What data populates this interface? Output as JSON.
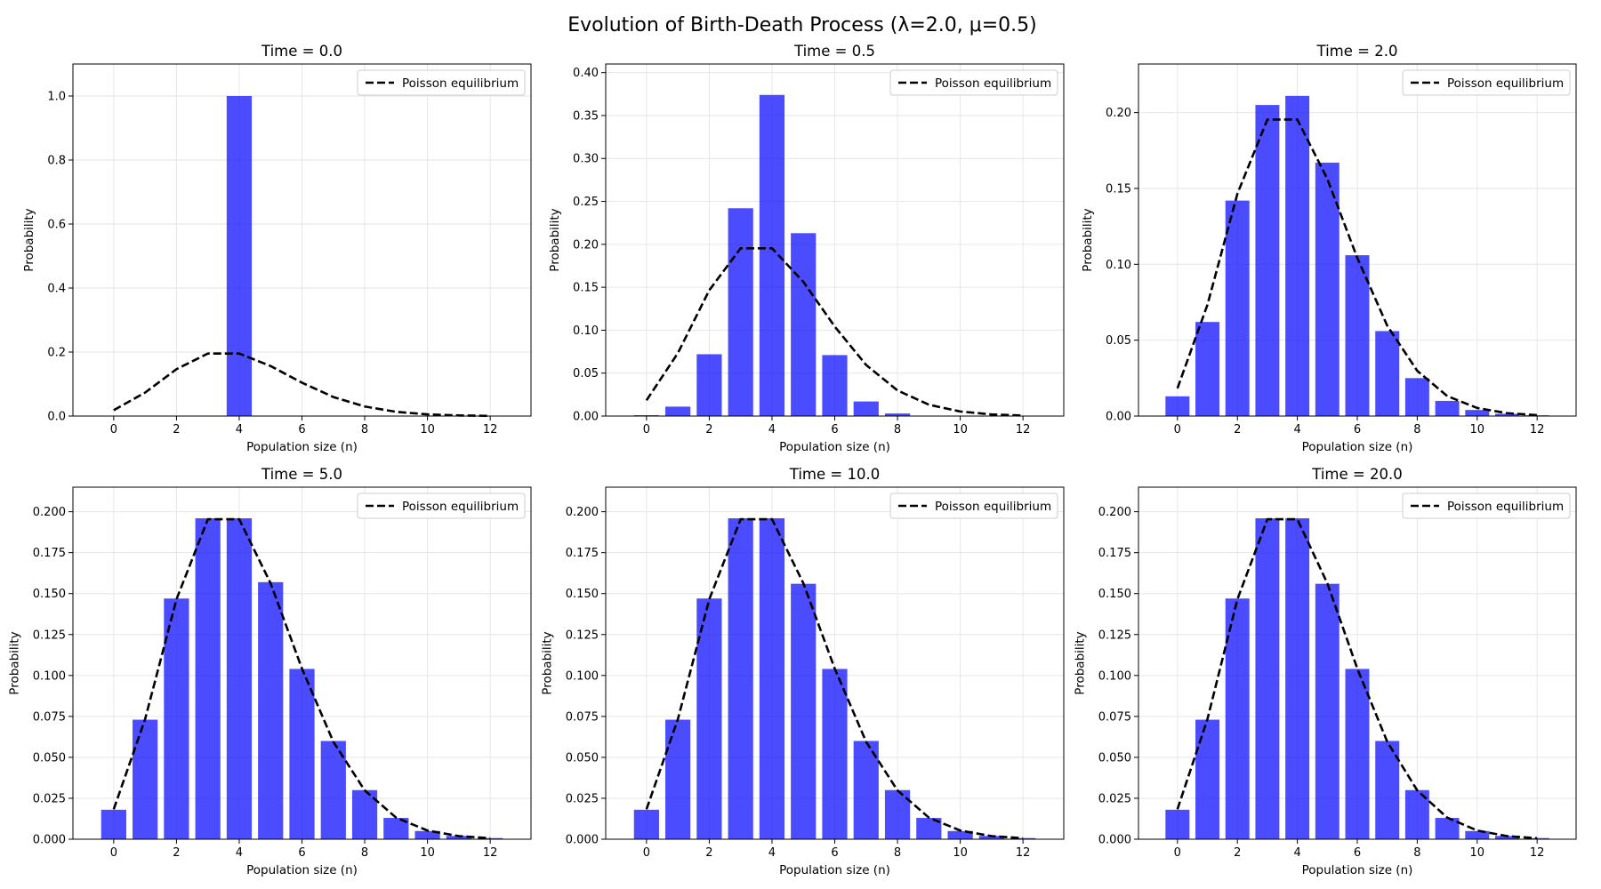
{
  "figure": {
    "title": "Evolution of Birth-Death Process (λ=2.0, μ=0.5)"
  },
  "colors": {
    "bar": "#0000ff",
    "bar_opacity": 0.7,
    "equilibrium_line": "#000000",
    "grid": "#e6e6e6"
  },
  "chart_data": [
    {
      "type": "bar",
      "title": "Time = 0.0",
      "xlabel": "Population size (n)",
      "ylabel": "Probability",
      "x": [
        0,
        1,
        2,
        3,
        4,
        5,
        6,
        7,
        8,
        9,
        10,
        11,
        12
      ],
      "values": [
        0,
        0,
        0,
        0,
        1.0,
        0,
        0,
        0,
        0,
        0,
        0,
        0,
        0
      ],
      "xlim": [
        -1.3,
        13.3
      ],
      "ylim": [
        0,
        1.1
      ],
      "xticks": [
        0,
        2,
        4,
        6,
        8,
        10,
        12
      ],
      "xtick_labels": [
        "0",
        "2",
        "4",
        "6",
        "8",
        "10",
        "12"
      ],
      "yticks": [
        0,
        0.2,
        0.4,
        0.6,
        0.8,
        1.0
      ],
      "ytick_labels": [
        "0.0",
        "0.2",
        "0.4",
        "0.6",
        "0.8",
        "1.0"
      ],
      "series": [
        {
          "name": "Poisson equilibrium",
          "style": "dashed",
          "values": [
            0.0183,
            0.0733,
            0.1465,
            0.1954,
            0.1954,
            0.1563,
            0.1042,
            0.0595,
            0.0298,
            0.0132,
            0.0053,
            0.0019,
            0.0006
          ]
        }
      ],
      "grid": true,
      "legend": "top-right"
    },
    {
      "type": "bar",
      "title": "Time = 0.5",
      "xlabel": "Population size (n)",
      "ylabel": "Probability",
      "x": [
        0,
        1,
        2,
        3,
        4,
        5,
        6,
        7,
        8,
        9,
        10,
        11,
        12
      ],
      "values": [
        0.001,
        0.011,
        0.072,
        0.242,
        0.374,
        0.213,
        0.071,
        0.017,
        0.003,
        0.0005,
        0.0001,
        0,
        0
      ],
      "xlim": [
        -1.3,
        13.3
      ],
      "ylim": [
        0,
        0.41
      ],
      "xticks": [
        0,
        2,
        4,
        6,
        8,
        10,
        12
      ],
      "xtick_labels": [
        "0",
        "2",
        "4",
        "6",
        "8",
        "10",
        "12"
      ],
      "yticks": [
        0,
        0.05,
        0.1,
        0.15,
        0.2,
        0.25,
        0.3,
        0.35,
        0.4
      ],
      "ytick_labels": [
        "0.00",
        "0.05",
        "0.10",
        "0.15",
        "0.20",
        "0.25",
        "0.30",
        "0.35",
        "0.40"
      ],
      "series": [
        {
          "name": "Poisson equilibrium",
          "style": "dashed",
          "values": [
            0.0183,
            0.0733,
            0.1465,
            0.1954,
            0.1954,
            0.1563,
            0.1042,
            0.0595,
            0.0298,
            0.0132,
            0.0053,
            0.0019,
            0.0006
          ]
        }
      ],
      "grid": true,
      "legend": "top-right"
    },
    {
      "type": "bar",
      "title": "Time = 2.0",
      "xlabel": "Population size (n)",
      "ylabel": "Probability",
      "x": [
        0,
        1,
        2,
        3,
        4,
        5,
        6,
        7,
        8,
        9,
        10,
        11,
        12
      ],
      "values": [
        0.013,
        0.062,
        0.142,
        0.205,
        0.211,
        0.167,
        0.106,
        0.056,
        0.025,
        0.01,
        0.004,
        0.0015,
        0.0005
      ],
      "xlim": [
        -1.3,
        13.3
      ],
      "ylim": [
        0,
        0.232
      ],
      "xticks": [
        0,
        2,
        4,
        6,
        8,
        10,
        12
      ],
      "xtick_labels": [
        "0",
        "2",
        "4",
        "6",
        "8",
        "10",
        "12"
      ],
      "yticks": [
        0,
        0.05,
        0.1,
        0.15,
        0.2
      ],
      "ytick_labels": [
        "0.00",
        "0.05",
        "0.10",
        "0.15",
        "0.20"
      ],
      "series": [
        {
          "name": "Poisson equilibrium",
          "style": "dashed",
          "values": [
            0.0183,
            0.0733,
            0.1465,
            0.1954,
            0.1954,
            0.1563,
            0.1042,
            0.0595,
            0.0298,
            0.0132,
            0.0053,
            0.0019,
            0.0006
          ]
        }
      ],
      "grid": true,
      "legend": "top-right"
    },
    {
      "type": "bar",
      "title": "Time = 5.0",
      "xlabel": "Population size (n)",
      "ylabel": "Probability",
      "x": [
        0,
        1,
        2,
        3,
        4,
        5,
        6,
        7,
        8,
        9,
        10,
        11,
        12
      ],
      "values": [
        0.018,
        0.073,
        0.147,
        0.196,
        0.196,
        0.157,
        0.104,
        0.06,
        0.03,
        0.013,
        0.005,
        0.002,
        0.0007
      ],
      "xlim": [
        -1.3,
        13.3
      ],
      "ylim": [
        0,
        0.215
      ],
      "xticks": [
        0,
        2,
        4,
        6,
        8,
        10,
        12
      ],
      "xtick_labels": [
        "0",
        "2",
        "4",
        "6",
        "8",
        "10",
        "12"
      ],
      "yticks": [
        0,
        0.025,
        0.05,
        0.075,
        0.1,
        0.125,
        0.15,
        0.175,
        0.2
      ],
      "ytick_labels": [
        "0.000",
        "0.025",
        "0.050",
        "0.075",
        "0.100",
        "0.125",
        "0.150",
        "0.175",
        "0.200"
      ],
      "series": [
        {
          "name": "Poisson equilibrium",
          "style": "dashed",
          "values": [
            0.0183,
            0.0733,
            0.1465,
            0.1954,
            0.1954,
            0.1563,
            0.1042,
            0.0595,
            0.0298,
            0.0132,
            0.0053,
            0.0019,
            0.0006
          ]
        }
      ],
      "grid": true,
      "legend": "top-right"
    },
    {
      "type": "bar",
      "title": "Time = 10.0",
      "xlabel": "Population size (n)",
      "ylabel": "Probability",
      "x": [
        0,
        1,
        2,
        3,
        4,
        5,
        6,
        7,
        8,
        9,
        10,
        11,
        12
      ],
      "values": [
        0.018,
        0.073,
        0.147,
        0.196,
        0.196,
        0.156,
        0.104,
        0.06,
        0.03,
        0.013,
        0.005,
        0.002,
        0.0007
      ],
      "xlim": [
        -1.3,
        13.3
      ],
      "ylim": [
        0,
        0.215
      ],
      "xticks": [
        0,
        2,
        4,
        6,
        8,
        10,
        12
      ],
      "xtick_labels": [
        "0",
        "2",
        "4",
        "6",
        "8",
        "10",
        "12"
      ],
      "yticks": [
        0,
        0.025,
        0.05,
        0.075,
        0.1,
        0.125,
        0.15,
        0.175,
        0.2
      ],
      "ytick_labels": [
        "0.000",
        "0.025",
        "0.050",
        "0.075",
        "0.100",
        "0.125",
        "0.150",
        "0.175",
        "0.200"
      ],
      "series": [
        {
          "name": "Poisson equilibrium",
          "style": "dashed",
          "values": [
            0.0183,
            0.0733,
            0.1465,
            0.1954,
            0.1954,
            0.1563,
            0.1042,
            0.0595,
            0.0298,
            0.0132,
            0.0053,
            0.0019,
            0.0006
          ]
        }
      ],
      "grid": true,
      "legend": "top-right"
    },
    {
      "type": "bar",
      "title": "Time = 20.0",
      "xlabel": "Population size (n)",
      "ylabel": "Probability",
      "x": [
        0,
        1,
        2,
        3,
        4,
        5,
        6,
        7,
        8,
        9,
        10,
        11,
        12
      ],
      "values": [
        0.018,
        0.073,
        0.147,
        0.196,
        0.196,
        0.156,
        0.104,
        0.06,
        0.03,
        0.013,
        0.005,
        0.002,
        0.0007
      ],
      "xlim": [
        -1.3,
        13.3
      ],
      "ylim": [
        0,
        0.215
      ],
      "xticks": [
        0,
        2,
        4,
        6,
        8,
        10,
        12
      ],
      "xtick_labels": [
        "0",
        "2",
        "4",
        "6",
        "8",
        "10",
        "12"
      ],
      "yticks": [
        0,
        0.025,
        0.05,
        0.075,
        0.1,
        0.125,
        0.15,
        0.175,
        0.2
      ],
      "ytick_labels": [
        "0.000",
        "0.025",
        "0.050",
        "0.075",
        "0.100",
        "0.125",
        "0.150",
        "0.175",
        "0.200"
      ],
      "series": [
        {
          "name": "Poisson equilibrium",
          "style": "dashed",
          "values": [
            0.0183,
            0.0733,
            0.1465,
            0.1954,
            0.1954,
            0.1563,
            0.1042,
            0.0595,
            0.0298,
            0.0132,
            0.0053,
            0.0019,
            0.0006
          ]
        }
      ],
      "grid": true,
      "legend": "top-right"
    }
  ]
}
